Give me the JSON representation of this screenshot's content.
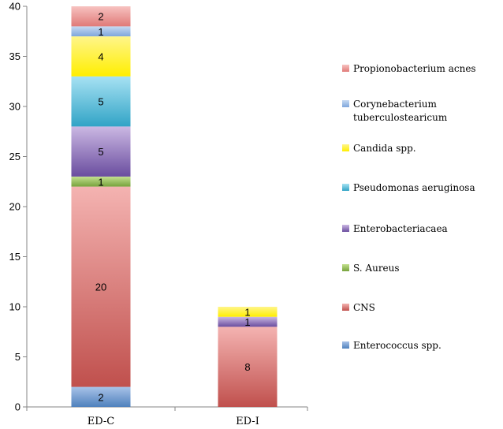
{
  "chart_data": {
    "type": "bar",
    "stacked": true,
    "categories": [
      "ED-C",
      "ED-I"
    ],
    "ylim": [
      0,
      40
    ],
    "yticks": [
      0,
      5,
      10,
      15,
      20,
      25,
      30,
      35,
      40
    ],
    "grid": false,
    "legend_position": "right",
    "series": [
      {
        "name": "Enterococcus spp.",
        "values": [
          2,
          0
        ],
        "color": "#4f81bd",
        "light": "#a8c2e8"
      },
      {
        "name": "CNS",
        "values": [
          20,
          8
        ],
        "color": "#c0504d",
        "light": "#f4b3b1"
      },
      {
        "name": "S. Aureus",
        "values": [
          1,
          0
        ],
        "color": "#77a33c",
        "light": "#c3e08f"
      },
      {
        "name": "Enterobacteriacaea",
        "values": [
          5,
          1
        ],
        "color": "#6a4d9f",
        "light": "#cbb8e3"
      },
      {
        "name": "Pseudomonas aeruginosa",
        "values": [
          5,
          0
        ],
        "color": "#31a3c6",
        "light": "#a7e2f3"
      },
      {
        "name": "Candida spp.",
        "values": [
          4,
          1
        ],
        "color": "#ffee00",
        "light": "#fff58a"
      },
      {
        "name": "Corynebacterium tuberculostearicum",
        "values": [
          1,
          0
        ],
        "color": "#7ea6dc",
        "light": "#c7daf2"
      },
      {
        "name": "Propionobacterium acnes",
        "values": [
          2,
          0
        ],
        "color": "#e07a78",
        "light": "#f7c2c0"
      }
    ]
  }
}
